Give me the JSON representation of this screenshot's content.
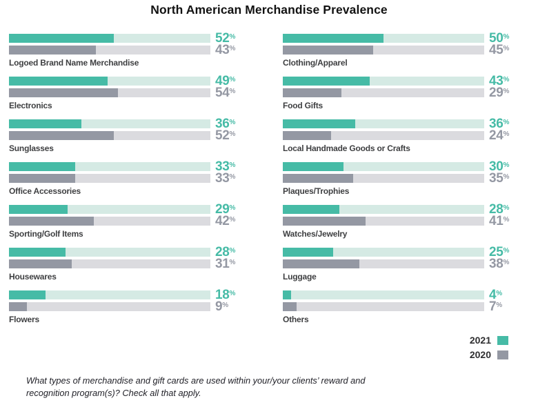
{
  "title": "North American Merchandise Prevalence",
  "footnote": "What types of merchandise and gift cards are used within your/your clients’ reward and recognition program(s)? Check all that apply.",
  "legend": {
    "items": [
      {
        "label": "2021",
        "color": "#46BBA6"
      },
      {
        "label": "2020",
        "color": "#9498A3"
      }
    ]
  },
  "colors": {
    "series_2021_fill": "#46BBA6",
    "series_2021_track": "#D5EAE4",
    "series_2020_fill": "#9498A3",
    "series_2020_track": "#DBDBDF",
    "category_label_text": "#3E3F41",
    "title_text": "#121212"
  },
  "chart_data": {
    "type": "bar",
    "orientation": "horizontal",
    "value_unit": "%",
    "axis_range": [
      0,
      100
    ],
    "grid": false,
    "legend_position": "bottom-right",
    "series_names": [
      "2021",
      "2020"
    ],
    "columns": [
      {
        "items": [
          {
            "category": "Logoed Brand Name Merchandise",
            "values": {
              "2021": 52,
              "2020": 43
            }
          },
          {
            "category": "Electronics",
            "values": {
              "2021": 49,
              "2020": 54
            }
          },
          {
            "category": "Sunglasses",
            "values": {
              "2021": 36,
              "2020": 52
            }
          },
          {
            "category": "Office Accessories",
            "values": {
              "2021": 33,
              "2020": 33
            }
          },
          {
            "category": "Sporting/Golf Items",
            "values": {
              "2021": 29,
              "2020": 42
            }
          },
          {
            "category": "Housewares",
            "values": {
              "2021": 28,
              "2020": 31
            }
          },
          {
            "category": "Flowers",
            "values": {
              "2021": 18,
              "2020": 9
            }
          }
        ]
      },
      {
        "items": [
          {
            "category": "Clothing/Apparel",
            "values": {
              "2021": 50,
              "2020": 45
            }
          },
          {
            "category": "Food Gifts",
            "values": {
              "2021": 43,
              "2020": 29
            }
          },
          {
            "category": "Local Handmade Goods or Crafts",
            "values": {
              "2021": 36,
              "2020": 24
            }
          },
          {
            "category": "Plaques/Trophies",
            "values": {
              "2021": 30,
              "2020": 35
            }
          },
          {
            "category": "Watches/Jewelry",
            "values": {
              "2021": 28,
              "2020": 41
            }
          },
          {
            "category": "Luggage",
            "values": {
              "2021": 25,
              "2020": 38
            }
          },
          {
            "category": "Others",
            "values": {
              "2021": 4,
              "2020": 7
            }
          }
        ]
      }
    ]
  }
}
